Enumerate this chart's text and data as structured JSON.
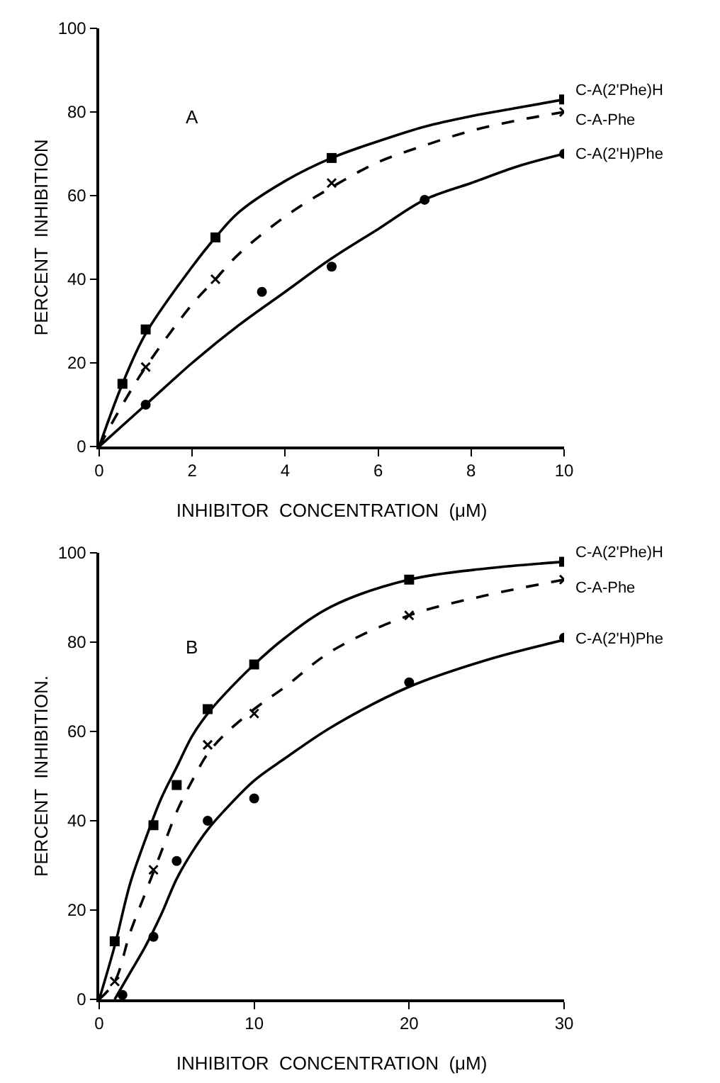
{
  "chart_data": [
    {
      "type": "scatter",
      "xlabel": "INHIBITOR  CONCENTRATION  (μM)",
      "ylabel": "PERCENT  INHIBITION",
      "annotations": [
        "A"
      ],
      "xlim": [
        0,
        10
      ],
      "xticks": [
        0,
        2,
        4,
        6,
        8,
        10
      ],
      "ylim": [
        0,
        100
      ],
      "yticks": [
        0,
        20,
        40,
        60,
        80,
        100
      ],
      "grid": false,
      "series": [
        {
          "type": "scatter",
          "marker": "square",
          "color": "#000000",
          "x": [
            0.5,
            1,
            2.5,
            5,
            10
          ],
          "values": [
            15,
            28,
            50,
            69,
            83
          ]
        },
        {
          "type": "scatter",
          "marker": "cross",
          "color": "#000000",
          "x": [
            1,
            2.5,
            5,
            10
          ],
          "values": [
            19,
            40,
            63,
            80
          ]
        },
        {
          "type": "scatter",
          "marker": "circle",
          "color": "#000000",
          "x": [
            1,
            3.5,
            5,
            7,
            10
          ],
          "values": [
            10,
            37,
            43,
            59,
            70
          ]
        },
        {
          "type": "line",
          "name": "C-A(2'Phe)H",
          "line_style": "solid",
          "color": "#000000",
          "x": [
            0,
            0.5,
            1,
            2,
            2.5,
            3,
            4,
            5,
            6,
            7,
            8,
            9,
            10
          ],
          "values": [
            0,
            15,
            27,
            43,
            50,
            56,
            63.5,
            69,
            73,
            76.5,
            79,
            81,
            83
          ]
        },
        {
          "type": "line",
          "name": "C-A-Phe",
          "line_style": "dashed",
          "color": "#000000",
          "x": [
            0,
            0.5,
            1,
            2,
            2.5,
            3,
            4,
            5,
            6,
            7,
            8,
            9,
            10
          ],
          "values": [
            0,
            10,
            19,
            34,
            40,
            46,
            55,
            62,
            68,
            72,
            75.5,
            78,
            80
          ]
        },
        {
          "type": "line",
          "name": "C-A(2'H)Phe",
          "line_style": "solid",
          "color": "#000000",
          "x": [
            0,
            1,
            2,
            3,
            4,
            5,
            6,
            7,
            8,
            9,
            10
          ],
          "values": [
            0,
            10,
            20,
            29,
            37,
            45,
            52,
            59,
            63,
            67,
            70
          ]
        }
      ]
    },
    {
      "type": "scatter",
      "xlabel": "INHIBITOR  CONCENTRATION  (μM)",
      "ylabel": "PERCENT  INHIBITION.",
      "annotations": [
        "B"
      ],
      "xlim": [
        0,
        30
      ],
      "xticks": [
        0,
        10,
        20,
        30
      ],
      "ylim": [
        0,
        100
      ],
      "yticks": [
        0,
        20,
        40,
        60,
        80,
        100
      ],
      "grid": false,
      "series": [
        {
          "type": "scatter",
          "marker": "square",
          "color": "#000000",
          "x": [
            1,
            3.5,
            5,
            7,
            10,
            20,
            30
          ],
          "values": [
            13,
            39,
            48,
            65,
            75,
            94,
            98
          ]
        },
        {
          "type": "scatter",
          "marker": "cross",
          "color": "#000000",
          "x": [
            1,
            3.5,
            7,
            10,
            20,
            30
          ],
          "values": [
            4,
            29,
            57,
            64,
            86,
            94
          ]
        },
        {
          "type": "scatter",
          "marker": "circle",
          "color": "#000000",
          "x": [
            1.5,
            3.5,
            5,
            7,
            10,
            20,
            30
          ],
          "values": [
            1,
            14,
            31,
            40,
            45,
            71,
            81
          ]
        },
        {
          "type": "line",
          "name": "C-A(2'Phe)H",
          "line_style": "solid",
          "color": "#000000",
          "x": [
            0,
            1,
            2,
            3,
            4,
            5,
            6,
            7,
            8,
            10,
            12,
            15,
            20,
            25,
            30
          ],
          "values": [
            0,
            12,
            26,
            36,
            45,
            52,
            59,
            64,
            68,
            75,
            81,
            88,
            94,
            96.5,
            98
          ]
        },
        {
          "type": "line",
          "name": "C-A-Phe",
          "line_style": "dashed",
          "color": "#000000",
          "x": [
            0,
            1,
            2,
            3,
            4,
            5,
            6,
            7,
            8,
            10,
            12,
            15,
            20,
            25,
            30
          ],
          "values": [
            0,
            4,
            15,
            24,
            33,
            42,
            49,
            55,
            59,
            65,
            70,
            78,
            86,
            90.5,
            94
          ]
        },
        {
          "type": "line",
          "name": "C-A(2'H)Phe",
          "line_style": "solid",
          "color": "#000000",
          "x": [
            1,
            2,
            3,
            4,
            5,
            6,
            7,
            8,
            10,
            12,
            15,
            20,
            25,
            30
          ],
          "values": [
            0,
            6,
            12,
            19,
            27,
            33,
            38,
            42,
            49,
            54,
            61,
            70,
            76,
            80.5
          ]
        }
      ]
    }
  ]
}
